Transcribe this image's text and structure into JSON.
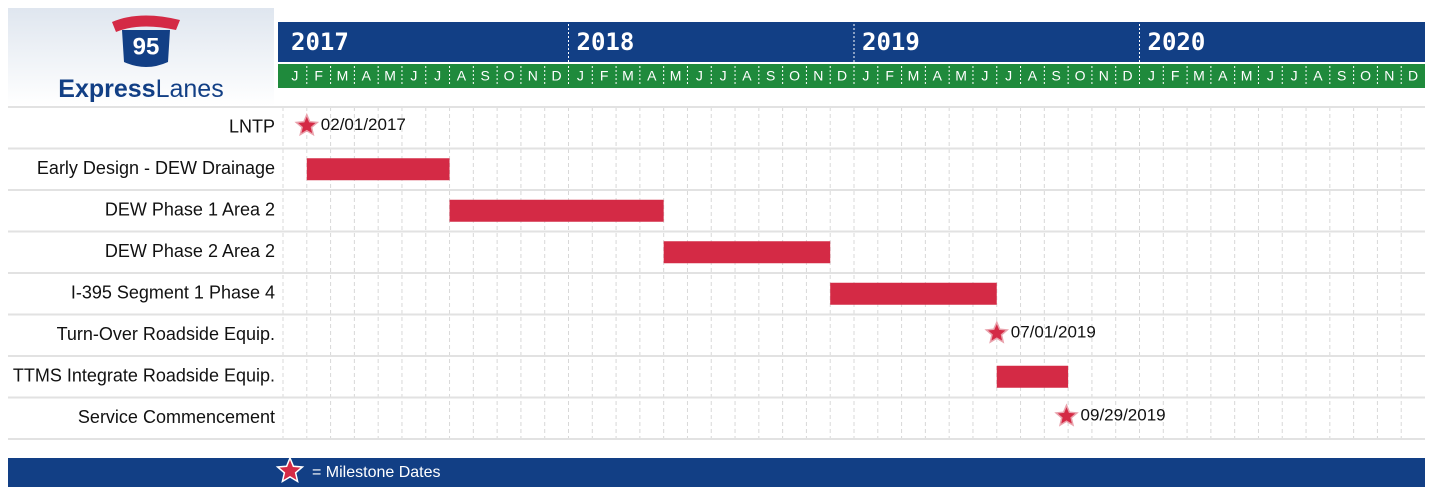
{
  "logo": {
    "number": "95",
    "brand_bold": "Express",
    "brand": "Lanes"
  },
  "chart_data": {
    "type": "gantt",
    "years": [
      "2017",
      "2018",
      "2019",
      "2020"
    ],
    "months": [
      "J",
      "F",
      "M",
      "A",
      "M",
      "J",
      "J",
      "A",
      "S",
      "O",
      "N",
      "D"
    ],
    "xlim": [
      "2017-01",
      "2020-12"
    ],
    "bar_color": "#d42a45",
    "grid": true,
    "tasks": [
      {
        "name": "LNTP",
        "milestone": {
          "date": "2017-02-01",
          "label": "02/01/2017"
        }
      },
      {
        "name": "Early Design - DEW Drainage",
        "start": "2017-02",
        "end": "2017-07"
      },
      {
        "name": "DEW Phase 1 Area 2",
        "start": "2017-08",
        "end": "2018-04"
      },
      {
        "name": "DEW Phase 2 Area 2",
        "start": "2018-05",
        "end": "2018-11"
      },
      {
        "name": "I-395 Segment 1 Phase 4",
        "start": "2018-12",
        "end": "2019-06"
      },
      {
        "name": "Turn-Over Roadside Equip.",
        "milestone": {
          "date": "2019-07-01",
          "label": "07/01/2019"
        }
      },
      {
        "name": "TTMS Integrate Roadside Equip.",
        "start": "2019-07",
        "end": "2019-09"
      },
      {
        "name": "Service Commencement",
        "milestone": {
          "date": "2019-09-29",
          "label": "09/29/2019"
        }
      }
    ],
    "legend": "= Milestone Dates"
  }
}
